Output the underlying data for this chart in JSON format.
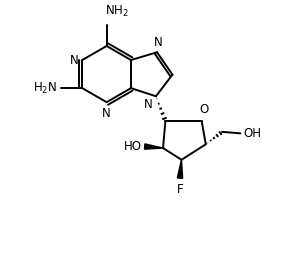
{
  "bg_color": "#ffffff",
  "line_color": "#000000",
  "bond_width": 1.4,
  "font_size": 8.5,
  "fig_width": 3.02,
  "fig_height": 2.7,
  "dpi": 100,
  "xlim": [
    0,
    9
  ],
  "ylim": [
    0,
    9
  ]
}
